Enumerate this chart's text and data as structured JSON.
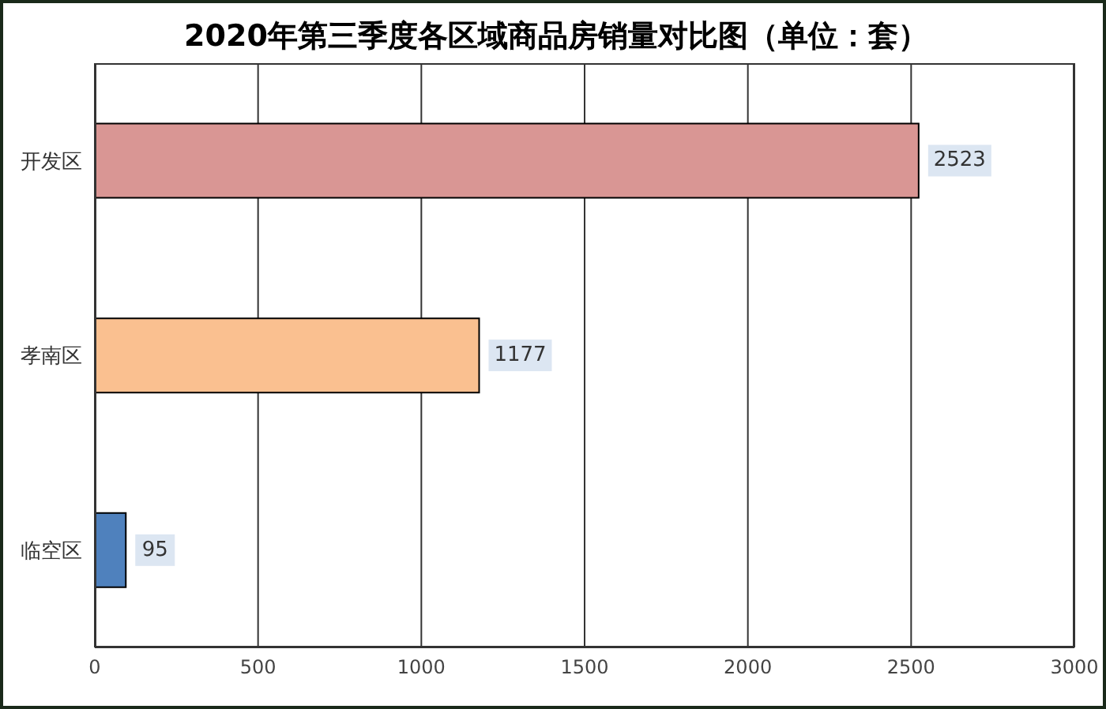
{
  "chart_data": {
    "type": "bar",
    "orientation": "horizontal",
    "title": "2020年第三季度各区域商品房销量对比图（单位：套）",
    "categories": [
      "开发区",
      "孝南区",
      "临空区"
    ],
    "values": [
      2523,
      1177,
      95
    ],
    "colors": [
      "#d99694",
      "#fac090",
      "#4f81bd"
    ],
    "xlim": [
      0,
      3000
    ],
    "xticks": [
      0,
      500,
      1000,
      1500,
      2000,
      2500,
      3000
    ],
    "grid": "x",
    "data_labels": true,
    "legend": false
  }
}
